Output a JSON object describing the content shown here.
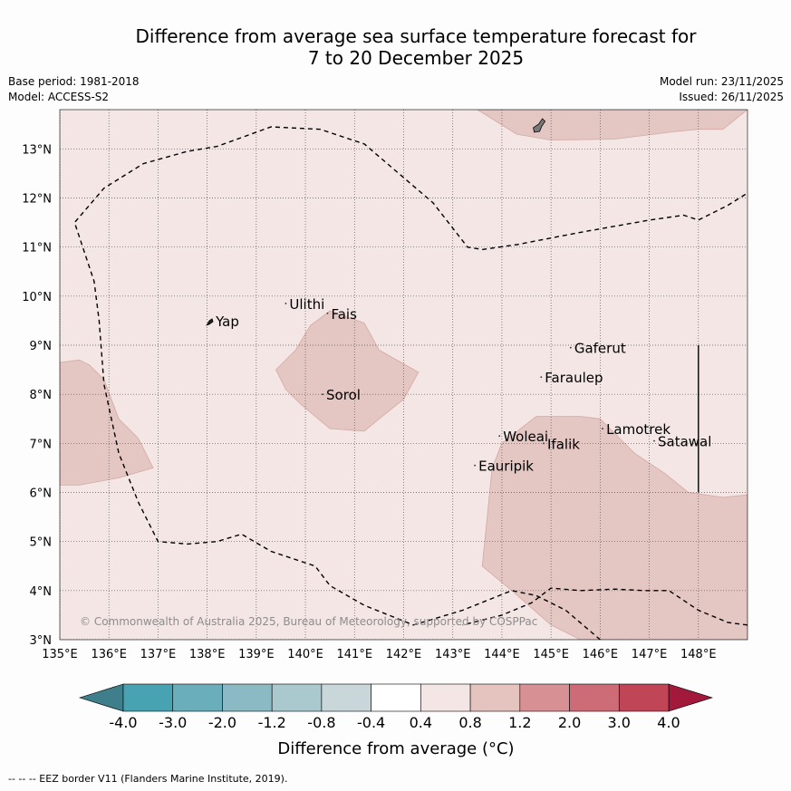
{
  "title_line1": "Difference from average sea surface temperature forecast for",
  "title_line2": "7 to 20 December 2025",
  "meta_left": {
    "base_period": "Base period: 1981-2018",
    "model": "Model: ACCESS-S2"
  },
  "meta_right": {
    "model_run": "Model run: 23/11/2025",
    "issued": "Issued: 26/11/2025"
  },
  "copyright": "© Commonwealth of Australia 2025, Bureau of Meteorology, supported by COSPPac",
  "footer": "--  --  -- EEZ border V11 (Flanders Marine Institute, 2019).",
  "map_extent": {
    "lon": [
      135,
      149
    ],
    "lat": [
      3,
      13.8
    ]
  },
  "lon_ticks": [
    {
      "value": 135,
      "label": "135°E"
    },
    {
      "value": 136,
      "label": "136°E"
    },
    {
      "value": 137,
      "label": "137°E"
    },
    {
      "value": 138,
      "label": "138°E"
    },
    {
      "value": 139,
      "label": "139°E"
    },
    {
      "value": 140,
      "label": "140°E"
    },
    {
      "value": 141,
      "label": "141°E"
    },
    {
      "value": 142,
      "label": "142°E"
    },
    {
      "value": 143,
      "label": "143°E"
    },
    {
      "value": 144,
      "label": "144°E"
    },
    {
      "value": 145,
      "label": "145°E"
    },
    {
      "value": 146,
      "label": "146°E"
    },
    {
      "value": 147,
      "label": "147°E"
    },
    {
      "value": 148,
      "label": "148°E"
    }
  ],
  "lat_ticks": [
    {
      "value": 3,
      "label": "3°N"
    },
    {
      "value": 4,
      "label": "4°N"
    },
    {
      "value": 5,
      "label": "5°N"
    },
    {
      "value": 6,
      "label": "6°N"
    },
    {
      "value": 7,
      "label": "7°N"
    },
    {
      "value": 8,
      "label": "8°N"
    },
    {
      "value": 9,
      "label": "9°N"
    },
    {
      "value": 10,
      "label": "10°N"
    },
    {
      "value": 11,
      "label": "11°N"
    },
    {
      "value": 12,
      "label": "12°N"
    },
    {
      "value": 13,
      "label": "13°N"
    }
  ],
  "colors": {
    "background_anomaly": "#f3e6e5",
    "anomaly_0_8_to_1_2": "#e4c6c3",
    "anomaly_0_8_to_1_2_edge": "#d3aaa6",
    "grid": "#555555",
    "land": "#7a7a7a"
  },
  "warm_regions": [
    {
      "name": "central-patch",
      "points": [
        [
          139.8,
          8.9
        ],
        [
          140.1,
          9.4
        ],
        [
          140.5,
          9.7
        ],
        [
          141.2,
          9.45
        ],
        [
          141.5,
          8.9
        ],
        [
          142.3,
          8.45
        ],
        [
          142.0,
          7.9
        ],
        [
          141.5,
          7.5
        ],
        [
          141.2,
          7.25
        ],
        [
          140.5,
          7.3
        ],
        [
          139.9,
          7.8
        ],
        [
          139.6,
          8.1
        ],
        [
          139.4,
          8.5
        ]
      ]
    },
    {
      "name": "west-patch",
      "points": [
        [
          135.0,
          8.65
        ],
        [
          135.4,
          8.7
        ],
        [
          135.6,
          8.6
        ],
        [
          135.9,
          8.3
        ],
        [
          136.2,
          7.5
        ],
        [
          136.6,
          7.1
        ],
        [
          136.9,
          6.5
        ],
        [
          136.2,
          6.3
        ],
        [
          135.4,
          6.15
        ],
        [
          135.0,
          6.15
        ]
      ]
    },
    {
      "name": "northeast-patch",
      "points": [
        [
          143.5,
          13.8
        ],
        [
          144.3,
          13.3
        ],
        [
          145.0,
          13.18
        ],
        [
          146.3,
          13.2
        ],
        [
          147.5,
          13.35
        ],
        [
          148.0,
          13.4
        ],
        [
          148.5,
          13.4
        ],
        [
          149.0,
          13.8
        ]
      ]
    },
    {
      "name": "southeast-patch",
      "points": [
        [
          144.7,
          7.55
        ],
        [
          145.6,
          7.55
        ],
        [
          146.0,
          7.5
        ],
        [
          146.3,
          7.2
        ],
        [
          146.7,
          6.8
        ],
        [
          147.3,
          6.4
        ],
        [
          147.8,
          6.0
        ],
        [
          148.5,
          5.9
        ],
        [
          149.0,
          5.95
        ],
        [
          149.0,
          3.0
        ],
        [
          145.6,
          3.0
        ],
        [
          145.0,
          3.3
        ],
        [
          144.2,
          4.0
        ],
        [
          143.6,
          4.5
        ],
        [
          143.7,
          5.5
        ],
        [
          143.8,
          6.5
        ],
        [
          144.0,
          7.0
        ]
      ]
    }
  ],
  "eez_lines": [
    {
      "name": "main-eez",
      "points": [
        [
          146.0,
          3.0
        ],
        [
          145.3,
          3.6
        ],
        [
          144.7,
          3.9
        ],
        [
          144.2,
          4.0
        ],
        [
          143.2,
          3.6
        ],
        [
          142.2,
          3.3
        ],
        [
          141.2,
          3.7
        ],
        [
          140.5,
          4.1
        ],
        [
          140.2,
          4.5
        ],
        [
          139.3,
          4.8
        ],
        [
          138.7,
          5.15
        ],
        [
          138.2,
          5.0
        ],
        [
          137.6,
          4.95
        ],
        [
          137.0,
          5.0
        ],
        [
          136.6,
          5.8
        ],
        [
          136.2,
          6.8
        ],
        [
          135.9,
          8.2
        ],
        [
          135.8,
          9.5
        ],
        [
          135.7,
          10.3
        ],
        [
          135.3,
          11.5
        ],
        [
          135.9,
          12.2
        ],
        [
          136.7,
          12.7
        ],
        [
          137.6,
          12.95
        ],
        [
          138.2,
          13.05
        ],
        [
          139.3,
          13.45
        ],
        [
          140.3,
          13.4
        ],
        [
          141.2,
          13.1
        ],
        [
          142.6,
          11.9
        ],
        [
          143.3,
          11.0
        ],
        [
          143.6,
          10.95
        ],
        [
          144.3,
          11.05
        ],
        [
          145.6,
          11.3
        ],
        [
          147.0,
          11.55
        ],
        [
          147.7,
          11.65
        ],
        [
          148.0,
          11.55
        ],
        [
          148.6,
          11.85
        ],
        [
          149.0,
          12.1
        ]
      ]
    },
    {
      "name": "southeast-eez",
      "points": [
        [
          149.0,
          3.3
        ],
        [
          148.6,
          3.35
        ],
        [
          148.0,
          3.6
        ],
        [
          147.4,
          4.0
        ],
        [
          146.9,
          4.0
        ],
        [
          146.3,
          4.03
        ],
        [
          145.6,
          4.0
        ],
        [
          145.0,
          4.05
        ],
        [
          144.6,
          3.75
        ],
        [
          144.0,
          3.5
        ],
        [
          143.2,
          3.3
        ]
      ]
    }
  ],
  "vertical_marker": {
    "lon": 148.0,
    "lat_top": 9.0,
    "lat_bottom": 6.0
  },
  "islands": [
    {
      "name": "Yap",
      "lon": 138.1,
      "lat": 9.5,
      "land": true
    },
    {
      "name": "Ulithi",
      "lon": 139.6,
      "lat": 9.85
    },
    {
      "name": "Fais",
      "lon": 140.45,
      "lat": 9.65
    },
    {
      "name": "Sorol",
      "lon": 140.35,
      "lat": 8.0
    },
    {
      "name": "Gaferut",
      "lon": 145.4,
      "lat": 8.95
    },
    {
      "name": "Faraulep",
      "lon": 144.8,
      "lat": 8.35
    },
    {
      "name": "Woleai",
      "lon": 143.95,
      "lat": 7.15
    },
    {
      "name": "Ifalik",
      "lon": 144.85,
      "lat": 7.0
    },
    {
      "name": "Eauripik",
      "lon": 143.45,
      "lat": 6.55
    },
    {
      "name": "Lamotrek",
      "lon": 146.05,
      "lat": 7.3
    },
    {
      "name": "Satawal",
      "lon": 147.1,
      "lat": 7.05
    },
    {
      "name": "Guam",
      "lon": 144.75,
      "lat": 13.45,
      "land": true,
      "label": false
    }
  ],
  "colorbar": {
    "label": "Difference from average (°C)",
    "ticks": [
      "-4.0",
      "-3.0",
      "-2.0",
      "-1.2",
      "-0.8",
      "-0.4",
      "0.4",
      "0.8",
      "1.2",
      "2.0",
      "3.0",
      "4.0"
    ],
    "colors": [
      "#47a2b1",
      "#6aaebb",
      "#8bb9c4",
      "#aac9cf",
      "#c9d6da",
      "#ffffff",
      "#f4e6e5",
      "#e5c4c0",
      "#d79194",
      "#cd6b77",
      "#c04657"
    ],
    "under_color": "#3e7f8b",
    "over_color": "#a3193c"
  }
}
